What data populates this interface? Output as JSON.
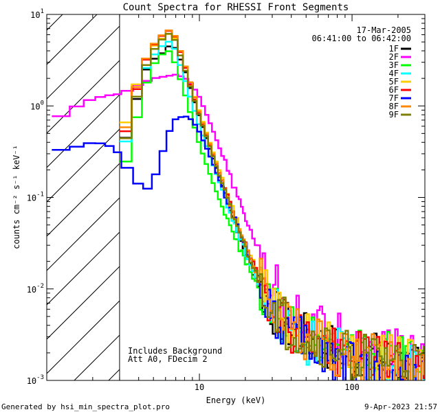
{
  "chart_data": {
    "type": "line",
    "title": "Count Spectra for RHESSI Front Segments",
    "xlabel": "Energy (keV)",
    "ylabel": "counts cm⁻² s⁻¹ keV⁻¹",
    "xscale": "log",
    "yscale": "log",
    "xlim": [
      1,
      300
    ],
    "ylim": [
      0.001,
      10
    ],
    "x_tick_labels": [
      {
        "value": 10,
        "label": "10"
      },
      {
        "value": 100,
        "label": "100"
      }
    ],
    "y_tick_labels": [
      {
        "value": 10,
        "base": "10",
        "exp": "1"
      },
      {
        "value": 1,
        "base": "10",
        "exp": "0"
      },
      {
        "value": 0.1,
        "base": "10",
        "exp": "-1"
      },
      {
        "value": 0.01,
        "base": "10",
        "exp": "-2"
      },
      {
        "value": 0.001,
        "base": "10",
        "exp": "-3"
      }
    ],
    "info_date": "17-Mar-2005",
    "info_time": "06:41:00 to 06:42:00",
    "annotation_line1": "Includes Background",
    "annotation_line2": "Att A0, FDecim 2",
    "hatched_region_max_energy": 3,
    "series": [
      {
        "name": "1F",
        "color": "#000000",
        "points": [
          [
            3,
            0.28
          ],
          [
            3.5,
            0.6
          ],
          [
            4,
            1.4
          ],
          [
            4.5,
            2.5
          ],
          [
            5,
            3.2
          ],
          [
            5.5,
            3.6
          ],
          [
            6,
            4.0
          ],
          [
            6.5,
            4.8
          ],
          [
            7,
            4.2
          ],
          [
            8,
            2.5
          ],
          [
            9,
            1.3
          ],
          [
            10,
            0.75
          ],
          [
            12,
            0.3
          ],
          [
            15,
            0.1
          ],
          [
            20,
            0.025
          ],
          [
            25,
            0.01
          ],
          [
            30,
            0.006
          ],
          [
            40,
            0.0035
          ],
          [
            60,
            0.0025
          ],
          [
            80,
            0.0022
          ],
          [
            100,
            0.002
          ],
          [
            150,
            0.0018
          ],
          [
            200,
            0.0015
          ],
          [
            280,
            0.0013
          ]
        ]
      },
      {
        "name": "2F",
        "color": "#ff00ff",
        "points": [
          [
            1.08,
            0.68
          ],
          [
            1.3,
            0.8
          ],
          [
            1.6,
            1.0
          ],
          [
            2,
            1.2
          ],
          [
            2.5,
            1.3
          ],
          [
            3,
            1.35
          ],
          [
            3.5,
            1.5
          ],
          [
            4,
            1.7
          ],
          [
            5,
            2.0
          ],
          [
            6,
            2.1
          ],
          [
            7,
            2.2
          ],
          [
            8,
            2.05
          ],
          [
            9,
            1.7
          ],
          [
            10,
            1.25
          ],
          [
            12,
            0.6
          ],
          [
            15,
            0.22
          ],
          [
            20,
            0.06
          ],
          [
            25,
            0.025
          ],
          [
            30,
            0.012
          ],
          [
            40,
            0.006
          ],
          [
            60,
            0.0038
          ],
          [
            80,
            0.003
          ],
          [
            100,
            0.0026
          ],
          [
            150,
            0.0022
          ],
          [
            200,
            0.002
          ],
          [
            280,
            0.0018
          ]
        ]
      },
      {
        "name": "3F",
        "color": "#00ff00",
        "points": [
          [
            3,
            0.14
          ],
          [
            3.5,
            0.35
          ],
          [
            4,
            0.9
          ],
          [
            4.5,
            1.8
          ],
          [
            5,
            2.8
          ],
          [
            5.5,
            3.5
          ],
          [
            6,
            3.9
          ],
          [
            6.5,
            4.0
          ],
          [
            7,
            2.8
          ],
          [
            8,
            1.4
          ],
          [
            9,
            0.7
          ],
          [
            10,
            0.38
          ],
          [
            12,
            0.16
          ],
          [
            15,
            0.06
          ],
          [
            20,
            0.02
          ],
          [
            25,
            0.009
          ],
          [
            30,
            0.006
          ],
          [
            40,
            0.004
          ],
          [
            60,
            0.003
          ],
          [
            80,
            0.0025
          ],
          [
            100,
            0.0023
          ],
          [
            150,
            0.002
          ],
          [
            200,
            0.0017
          ],
          [
            280,
            0.0015
          ]
        ]
      },
      {
        "name": "4F",
        "color": "#00ffff",
        "points": [
          [
            3,
            0.22
          ],
          [
            3.5,
            0.6
          ],
          [
            4,
            1.5
          ],
          [
            4.5,
            2.6
          ],
          [
            5,
            3.5
          ],
          [
            5.5,
            4.3
          ],
          [
            6,
            4.8
          ],
          [
            6.5,
            5.2
          ],
          [
            7,
            4.0
          ],
          [
            8,
            2.0
          ],
          [
            9,
            1.05
          ],
          [
            10,
            0.6
          ],
          [
            12,
            0.25
          ],
          [
            15,
            0.09
          ],
          [
            20,
            0.025
          ],
          [
            25,
            0.01
          ],
          [
            30,
            0.006
          ],
          [
            40,
            0.0032
          ],
          [
            60,
            0.0022
          ],
          [
            80,
            0.002
          ],
          [
            100,
            0.0018
          ],
          [
            150,
            0.0016
          ],
          [
            200,
            0.0014
          ],
          [
            280,
            0.0013
          ]
        ]
      },
      {
        "name": "5F",
        "color": "#ffcc00",
        "points": [
          [
            3,
            0.4
          ],
          [
            3.5,
            0.9
          ],
          [
            4,
            2.0
          ],
          [
            4.5,
            3.3
          ],
          [
            5,
            4.4
          ],
          [
            5.5,
            5.2
          ],
          [
            6,
            5.8
          ],
          [
            6.5,
            6.3
          ],
          [
            7,
            5.3
          ],
          [
            8,
            2.9
          ],
          [
            9,
            1.5
          ],
          [
            10,
            0.85
          ],
          [
            12,
            0.35
          ],
          [
            15,
            0.12
          ],
          [
            20,
            0.032
          ],
          [
            25,
            0.013
          ],
          [
            30,
            0.007
          ],
          [
            40,
            0.0038
          ],
          [
            60,
            0.0026
          ],
          [
            80,
            0.0022
          ],
          [
            100,
            0.002
          ],
          [
            150,
            0.0018
          ],
          [
            200,
            0.0016
          ],
          [
            280,
            0.0014
          ]
        ]
      },
      {
        "name": "6F",
        "color": "#ff0000",
        "points": [
          [
            3,
            0.3
          ],
          [
            3.5,
            0.75
          ],
          [
            4,
            1.8
          ],
          [
            4.5,
            3.2
          ],
          [
            5,
            4.5
          ],
          [
            5.5,
            5.5
          ],
          [
            6,
            6.3
          ],
          [
            6.5,
            6.8
          ],
          [
            7,
            5.5
          ],
          [
            8,
            2.8
          ],
          [
            9,
            1.4
          ],
          [
            10,
            0.8
          ],
          [
            12,
            0.33
          ],
          [
            15,
            0.11
          ],
          [
            20,
            0.03
          ],
          [
            25,
            0.012
          ],
          [
            30,
            0.007
          ],
          [
            40,
            0.0036
          ],
          [
            60,
            0.0025
          ],
          [
            80,
            0.0021
          ],
          [
            100,
            0.0019
          ],
          [
            150,
            0.0017
          ],
          [
            200,
            0.0015
          ],
          [
            280,
            0.0013
          ]
        ]
      },
      {
        "name": "7F",
        "color": "#0000ff",
        "points": [
          [
            1.08,
            0.3
          ],
          [
            1.3,
            0.34
          ],
          [
            1.6,
            0.36
          ],
          [
            2,
            0.4
          ],
          [
            2.5,
            0.38
          ],
          [
            3,
            0.3
          ],
          [
            3.5,
            0.19
          ],
          [
            4,
            0.14
          ],
          [
            4.5,
            0.12
          ],
          [
            5,
            0.15
          ],
          [
            5.5,
            0.24
          ],
          [
            6,
            0.4
          ],
          [
            6.5,
            0.58
          ],
          [
            7,
            0.72
          ],
          [
            8,
            0.78
          ],
          [
            9,
            0.7
          ],
          [
            10,
            0.52
          ],
          [
            12,
            0.26
          ],
          [
            15,
            0.1
          ],
          [
            20,
            0.03
          ],
          [
            25,
            0.012
          ],
          [
            30,
            0.006
          ],
          [
            40,
            0.003
          ],
          [
            60,
            0.002
          ],
          [
            80,
            0.0017
          ],
          [
            100,
            0.0015
          ],
          [
            150,
            0.0013
          ],
          [
            200,
            0.0012
          ],
          [
            280,
            0.0011
          ]
        ]
      },
      {
        "name": "8F",
        "color": "#ff8800",
        "points": [
          [
            3,
            0.35
          ],
          [
            3.5,
            0.8
          ],
          [
            4,
            1.9
          ],
          [
            4.5,
            3.3
          ],
          [
            5,
            4.6
          ],
          [
            5.5,
            5.6
          ],
          [
            6,
            6.4
          ],
          [
            6.5,
            6.9
          ],
          [
            7,
            5.6
          ],
          [
            8,
            2.9
          ],
          [
            9,
            1.5
          ],
          [
            10,
            0.82
          ],
          [
            12,
            0.34
          ],
          [
            15,
            0.11
          ],
          [
            20,
            0.03
          ],
          [
            25,
            0.012
          ],
          [
            30,
            0.007
          ],
          [
            40,
            0.0037
          ],
          [
            60,
            0.0025
          ],
          [
            80,
            0.0021
          ],
          [
            100,
            0.0019
          ],
          [
            150,
            0.0017
          ],
          [
            200,
            0.0015
          ],
          [
            280,
            0.0013
          ]
        ]
      },
      {
        "name": "9F",
        "color": "#808000",
        "points": [
          [
            3,
            0.27
          ],
          [
            3.5,
            0.6
          ],
          [
            4,
            1.5
          ],
          [
            4.5,
            2.8
          ],
          [
            5,
            4.0
          ],
          [
            5.5,
            5.0
          ],
          [
            6,
            5.8
          ],
          [
            6.5,
            6.4
          ],
          [
            7,
            5.0
          ],
          [
            8,
            2.6
          ],
          [
            9,
            1.35
          ],
          [
            10,
            0.77
          ],
          [
            12,
            0.32
          ],
          [
            15,
            0.1
          ],
          [
            20,
            0.028
          ],
          [
            25,
            0.011
          ],
          [
            30,
            0.0065
          ],
          [
            40,
            0.0035
          ],
          [
            60,
            0.0024
          ],
          [
            80,
            0.0021
          ],
          [
            100,
            0.0019
          ],
          [
            150,
            0.0017
          ],
          [
            200,
            0.0015
          ],
          [
            280,
            0.0013
          ]
        ]
      }
    ]
  },
  "footer": {
    "generated_by": "Generated by hsi_min_spectra_plot.pro",
    "timestamp": "9-Apr-2023 21:57"
  }
}
